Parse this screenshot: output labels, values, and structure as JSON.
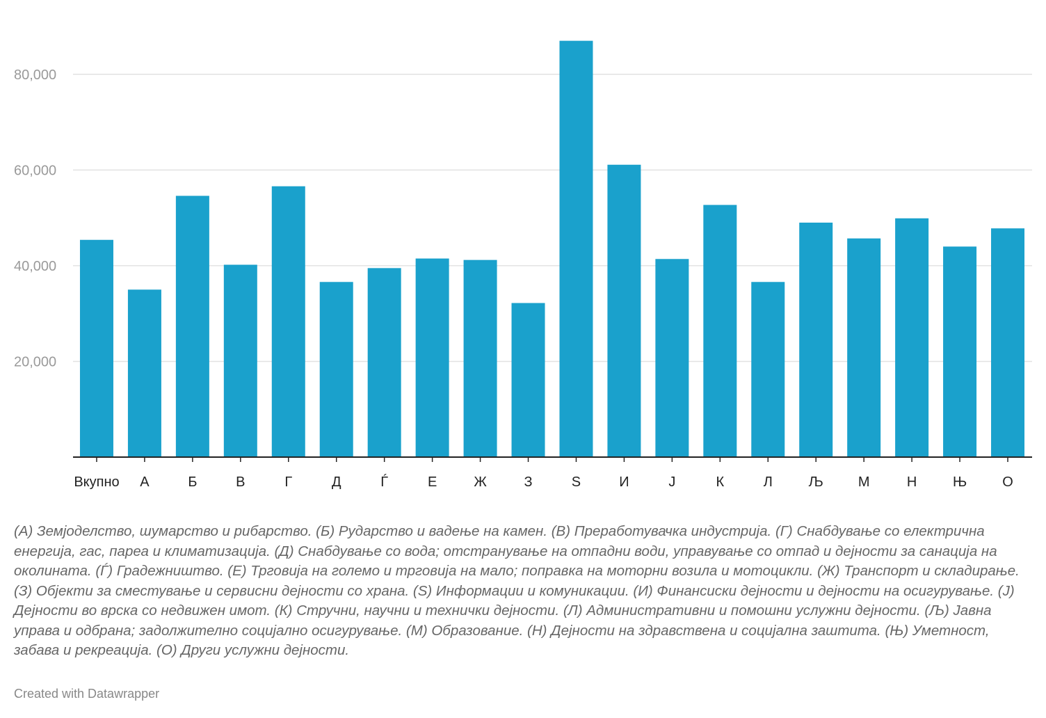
{
  "chart_data": {
    "type": "bar",
    "categories": [
      "Вкупно",
      "А",
      "Б",
      "В",
      "Г",
      "Д",
      "Ѓ",
      "Е",
      "Ж",
      "З",
      "S",
      "И",
      "Ј",
      "К",
      "Л",
      "Љ",
      "М",
      "Н",
      "Њ",
      "О"
    ],
    "values": [
      45400,
      35000,
      54600,
      40200,
      56600,
      36600,
      39500,
      41500,
      41200,
      32200,
      87000,
      61100,
      41400,
      52700,
      36600,
      49000,
      45700,
      49900,
      44000,
      47800
    ],
    "ylim": [
      0,
      90000
    ],
    "yticks": [
      20000,
      40000,
      60000,
      80000
    ],
    "ytick_labels": [
      "20,000",
      "40,000",
      "60,000",
      "80,000"
    ],
    "grid": true,
    "bar_color": "#1aa1cc"
  },
  "notes": "(А) Земјоделство, шумарство и рибарство. (Б) Рударство и вадење на камен. (В) Преработувачка индустрија. (Г) Снабдување со електрична енергија, гас, пареа и климатизација. (Д) Снабдување со вода; отстранување на отпадни води, управување со отпад и дејности за санација на околината. (Ѓ) Градежништво. (Е) Трговија на големо и трговија на мало; поправка на моторни возила и мотоцикли. (Ж) Транспорт и складирање. (З) Објекти за сместување и сервисни дејности со храна. (S) Информации и комуникации. (И) Финансиски дејности и дејности на осигурување. (Ј) Дејности во врска со недвижен имот. (К) Стручни, научни и технички дејности. (Л) Административни и помошни услужни дејности. (Љ) Јавна управа и одбрана; задолжително социјално осигурување. (М) Образование. (Н) Дејности на здравствена и социјална заштита. (Њ) Уметност, забава и рекреација. (О) Други услужни дејности.",
  "credit": "Created with Datawrapper"
}
